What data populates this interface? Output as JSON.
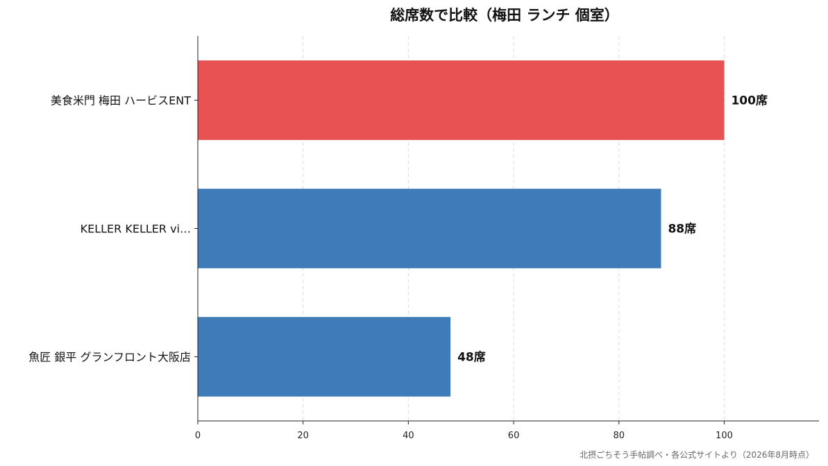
{
  "chart_data": {
    "type": "bar",
    "orientation": "horizontal",
    "title": "総席数で比較（梅田 ランチ 個室）",
    "xlabel": "",
    "ylabel": "",
    "categories": [
      "美食米門 梅田 ハービスENT",
      "KELLER KELLER vi…",
      "魚匠 銀平 グランフロント大阪店"
    ],
    "values": [
      100,
      88,
      48
    ],
    "data_labels": [
      "100席",
      "88席",
      "48席"
    ],
    "colors": [
      "#e85252",
      "#3f7bb8",
      "#3f7bb8"
    ],
    "xlim": [
      0,
      118
    ],
    "x_ticks": [
      0,
      20,
      40,
      60,
      80,
      100
    ],
    "grid": "vertical-dashed",
    "legend": "none",
    "source": "北摂ごちそう手帖調べ・各公式サイトより（2026年8月時点）"
  }
}
